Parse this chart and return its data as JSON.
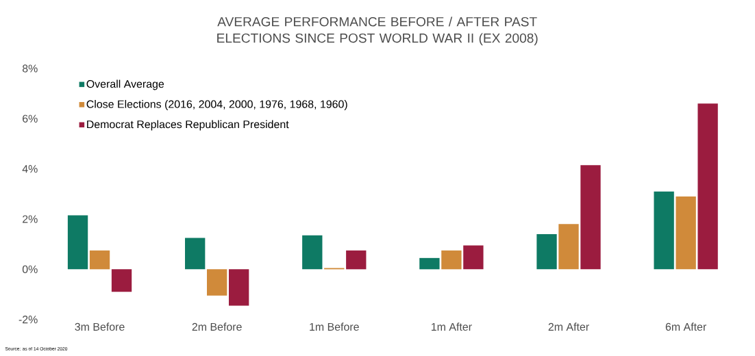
{
  "chart_data": {
    "type": "bar",
    "title": "AVERAGE PERFORMANCE BEFORE / AFTER PAST ELECTIONS SINCE POST WORLD WAR II (EX 2008)",
    "categories": [
      "3m Before",
      "2m Before",
      "1m Before",
      "1m After",
      "2m After",
      "6m After"
    ],
    "series": [
      {
        "name": "Overall Average",
        "color": "#0e7a64",
        "values": [
          2.15,
          1.25,
          1.35,
          0.45,
          1.4,
          3.1
        ]
      },
      {
        "name": "Close Elections (2016, 2004, 2000, 1976, 1968, 1960)",
        "color": "#d08a3a",
        "values": [
          0.75,
          -1.05,
          0.05,
          0.75,
          1.8,
          2.9
        ]
      },
      {
        "name": "Democrat Replaces Republican President",
        "color": "#9b1c3f",
        "values": [
          -0.9,
          -1.45,
          0.75,
          0.95,
          4.15,
          6.6
        ]
      }
    ],
    "ylim": [
      -2,
      8
    ],
    "yticks": [
      {
        "value": -2,
        "label": "-2%"
      },
      {
        "value": 0,
        "label": "0%"
      },
      {
        "value": 2,
        "label": "2%"
      },
      {
        "value": 4,
        "label": "4%"
      },
      {
        "value": 6,
        "label": "6%"
      },
      {
        "value": 8,
        "label": "8%"
      }
    ],
    "grid": false,
    "legend": "top left",
    "annotations": [
      "Source: as of 14 October 2020"
    ]
  }
}
